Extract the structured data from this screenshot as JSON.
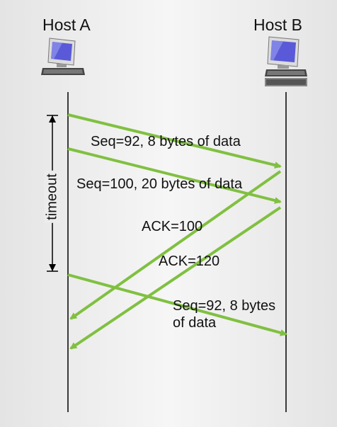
{
  "hosts": {
    "a": {
      "label": "Host A"
    },
    "b": {
      "label": "Host B"
    }
  },
  "timeout": {
    "label": "timeout"
  },
  "messages": [
    {
      "text": "Seq=92, 8 bytes of data"
    },
    {
      "text": "Seq=100, 20 bytes of data"
    },
    {
      "text": "ACK=100"
    },
    {
      "text": "ACK=120"
    },
    {
      "text": "Seq=92,  8 bytes of data"
    }
  ],
  "colors": {
    "arrow": "#80c040",
    "timeline": "#000000",
    "screen": "#5a5ad8"
  },
  "icons": [
    "desktop-computer-icon",
    "desktop-computer-icon"
  ]
}
